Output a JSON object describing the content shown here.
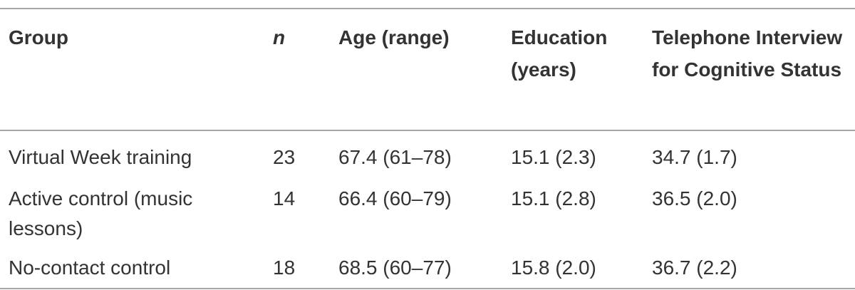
{
  "table": {
    "header": [
      "Group",
      "n",
      "Age (range)",
      "Education (years)",
      "Telephone Interview for Cognitive Status"
    ],
    "rows": [
      [
        "Virtual Week training",
        "23",
        "67.4 (61–78)",
        "15.1 (2.3)",
        "34.7 (1.7)"
      ],
      [
        "Active control (music lessons)",
        "14",
        "66.4 (60–79)",
        "15.1 (2.8)",
        "36.5 (2.0)"
      ],
      [
        "No-contact control",
        "18",
        "68.5 (60–77)",
        "15.8 (2.0)",
        "36.7 (2.2)"
      ]
    ]
  }
}
